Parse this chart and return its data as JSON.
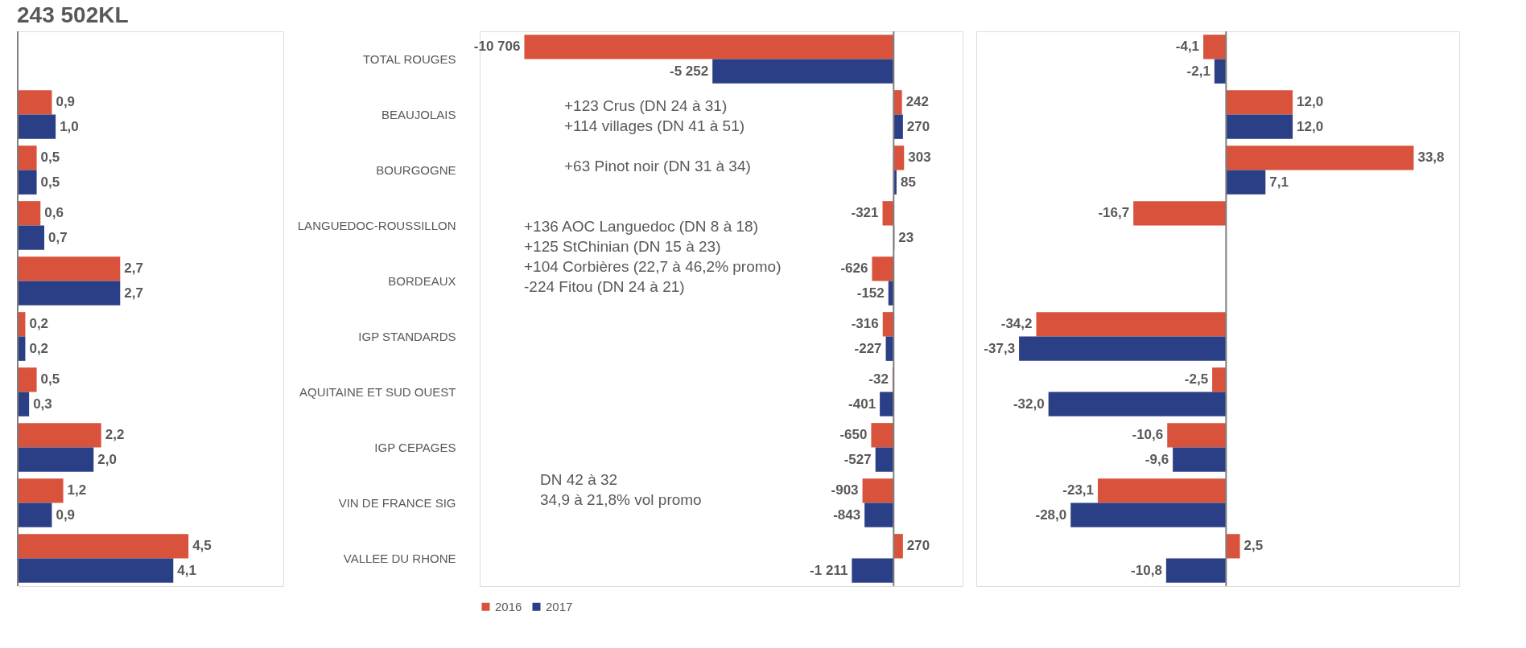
{
  "chart_data": [
    {
      "type": "bar",
      "orientation": "horizontal",
      "title": "243 502KL",
      "tick_labels": false,
      "xlim": [
        0,
        7
      ],
      "categories": [
        null,
        null,
        null,
        null,
        null,
        null,
        null,
        null,
        null
      ],
      "series": [
        {
          "color": "#d9523c",
          "values": [
            0.9,
            0.5,
            0.6,
            2.7,
            0.2,
            0.5,
            2.2,
            1.2,
            4.5
          ],
          "value_labels": [
            "0,9",
            "0,5",
            "0,6",
            "2,7",
            "0,2",
            "0,5",
            "2,2",
            "1,2",
            "4,5"
          ]
        },
        {
          "color": "#2b3f86",
          "values": [
            1.0,
            0.5,
            0.7,
            2.7,
            0.2,
            0.3,
            2.0,
            0.9,
            4.1
          ],
          "value_labels": [
            "1,0",
            "0,5",
            "0,7",
            "2,7",
            "0,2",
            "0,3",
            "2,0",
            "0,9",
            "4,1"
          ]
        }
      ]
    },
    {
      "type": "bar",
      "orientation": "horizontal",
      "tick_labels": "y",
      "legend": "bottom",
      "xlim": [
        -12000,
        2000
      ],
      "categories": [
        "TOTAL ROUGES",
        "BEAUJOLAIS",
        "BOURGOGNE",
        "LANGUEDOC-ROUSSILLON",
        "BORDEAUX",
        "IGP STANDARDS",
        "AQUITAINE ET SUD OUEST",
        "IGP CEPAGES",
        "VIN DE FRANCE SIG",
        "VALLEE DU RHONE"
      ],
      "series": [
        {
          "name": "2016",
          "color": "#d9523c",
          "values": [
            -10706,
            242,
            303,
            -321,
            -626,
            -316,
            -32,
            -650,
            -903,
            270
          ],
          "value_labels": [
            "-10 706",
            "242",
            "303",
            "-321",
            "-626",
            "-316",
            "-32",
            "-650",
            "-903",
            "270"
          ]
        },
        {
          "name": "2017",
          "color": "#2b3f86",
          "values": [
            -5252,
            270,
            85,
            23,
            -152,
            -227,
            -401,
            -527,
            -843,
            -1211
          ],
          "value_labels": [
            "-5 252",
            "270",
            "85",
            "23",
            "-152",
            "-227",
            "-401",
            "-527",
            "-843",
            "-1 211"
          ]
        }
      ],
      "annotations": [
        "+123 Crus (DN 24 à 31)\n+114 villages (DN 41 à 51)",
        "+63 Pinot noir (DN 31 à 34)",
        "+136 AOC Languedoc (DN 8 à 18)\n+125 StChinian (DN 15 à 23)\n+104 Corbières (22,7 à 46,2% promo)\n-224 Fitou (DN 24 à 21)",
        "DN 42 à 32\n34,9 à 21,8% vol promo"
      ]
    },
    {
      "type": "bar",
      "orientation": "horizontal",
      "tick_labels": false,
      "xlim": [
        -45,
        42
      ],
      "categories": [
        null,
        null,
        null,
        null,
        null,
        null,
        null,
        null,
        null,
        null
      ],
      "series": [
        {
          "color": "#d9523c",
          "values": [
            -4.1,
            12.0,
            33.8,
            -16.7,
            null,
            -34.2,
            -2.5,
            -10.6,
            -23.1,
            2.5
          ],
          "value_labels": [
            "-4,1",
            "12,0",
            "33,8",
            "-16,7",
            null,
            "-34,2",
            "-2,5",
            "-10,6",
            "-23,1",
            "2,5"
          ]
        },
        {
          "color": "#2b3f86",
          "values": [
            -2.1,
            12.0,
            7.1,
            null,
            null,
            -37.3,
            -32.0,
            -9.6,
            -28.0,
            -10.8
          ],
          "value_labels": [
            "-2,1",
            "12,0",
            "7,1",
            null,
            null,
            "-37,3",
            "-32,0",
            "-9,6",
            "-28,0",
            "-10,8"
          ]
        }
      ]
    }
  ]
}
